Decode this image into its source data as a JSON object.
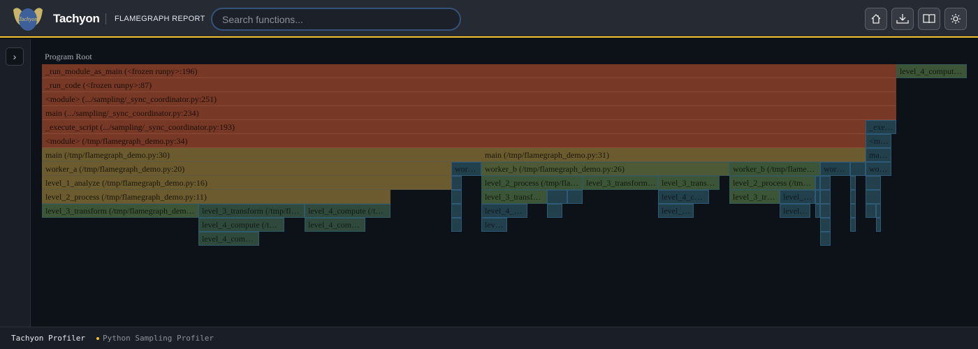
{
  "header": {
    "brand": "Tachyon",
    "subtitle": "FLAMEGRAPH REPORT",
    "logo_text": "Tachyon",
    "search_placeholder": "Search functions...",
    "buttons": [
      {
        "icon": "home-icon"
      },
      {
        "icon": "download-icon"
      },
      {
        "icon": "book-icon"
      },
      {
        "icon": "sun-icon"
      }
    ]
  },
  "sidebar": {
    "toggle_icon": "chevron-right-icon",
    "toggle_label": "›"
  },
  "flamegraph": {
    "root_label": "Program Root",
    "frames": [
      "_run_module_as_main (<frozen runpy>:196)",
      "level_4_comput…",
      "_run_code (<frozen runpy>:87)",
      "<module> (.../sampling/_sync_coordinator.py:251)",
      "main (.../sampling/_sync_coordinator.py:234)",
      "_execute_script (.../sampling/_sync_coordinator.py:193)",
      "_exe…",
      "<module> (/tmp/flamegraph_demo.py:34)",
      "<m…",
      "main (/tmp/flamegraph_demo.py:30)",
      "main (/tmp/flamegraph_demo.py:31)",
      "ma…",
      "worker_a (/tmp/flamegraph_demo.py:20)",
      "wor…",
      "worker_b (/tmp/flamegraph_demo.py:26)",
      "worker_b (/tmp/flame…",
      "wor…",
      "",
      "wo…",
      "level_1_analyze (/tmp/flamegraph_demo.py:16)",
      "",
      "level_2_process (/tmp/fla…",
      "level_3_transform…",
      "level_3_trans…",
      "level_2_process (/tm…",
      "",
      "",
      "",
      "",
      "level_2_process (/tmp/flamegraph_demo.py:11)",
      "",
      "level_3_transf…",
      "",
      "",
      "level_4_c…",
      "level_3_tr…",
      "level_…",
      "",
      "",
      "",
      "",
      "level_3_transform (/tmp/flamegraph_dem…",
      "level_3_transform (/tmp/fl…",
      "level_4_compute (/t…",
      "",
      "level_4_…",
      "",
      "level_…",
      "level…",
      "",
      "",
      "",
      "",
      "",
      "level_4_compute (/t…",
      "level_4_com…",
      "",
      "lev…",
      "",
      "",
      "",
      "level_4_com…",
      ""
    ]
  },
  "footer": {
    "app": "Tachyon Profiler",
    "status": "Python Sampling Profiler",
    "status_color": "#f2c12e"
  },
  "colors": {
    "accent": "#f2c12e",
    "frame_orange": "#773926",
    "frame_yellow": "#6b5b2e",
    "frame_green": "#3c5536",
    "frame_teal": "#223f4c"
  }
}
